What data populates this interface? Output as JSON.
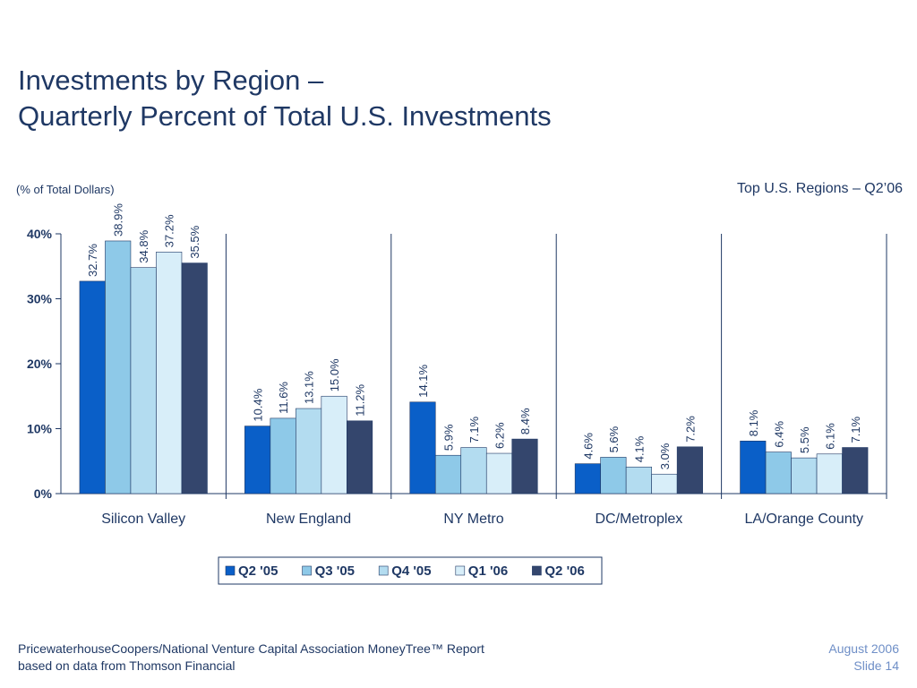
{
  "slide": {
    "title_line1": "Investments by Region –",
    "title_line2": "Quarterly Percent of Total U.S. Investments",
    "unit_note": "(% of Total Dollars)",
    "chart_caption": "Top U.S. Regions – Q2’06",
    "footer_line1": "PricewaterhouseCoopers/National Venture Capital Association MoneyTree™ Report",
    "footer_line2": "based on data from Thomson Financial",
    "date": "August 2006",
    "slide_number": "Slide 14"
  },
  "chart_data": {
    "type": "bar",
    "title": "Investments by Region – Quarterly Percent of Total U.S. Investments",
    "ylabel": "(% of Total Dollars)",
    "ylim": [
      0,
      40
    ],
    "yticks": [
      0,
      10,
      20,
      30,
      40
    ],
    "ytick_labels": [
      "0%",
      "10%",
      "20%",
      "30%",
      "40%"
    ],
    "categories": [
      "Silicon Valley",
      "New England",
      "NY Metro",
      "DC/Metroplex",
      "LA/Orange County"
    ],
    "series": [
      {
        "name": "Q2 '05",
        "color": "#0a5fc8",
        "values": [
          32.7,
          10.4,
          14.1,
          4.6,
          8.1
        ]
      },
      {
        "name": "Q3 '05",
        "color": "#8ec9e8",
        "values": [
          38.9,
          11.6,
          5.9,
          5.6,
          6.4
        ]
      },
      {
        "name": "Q4 '05",
        "color": "#b3dcf0",
        "values": [
          34.8,
          13.1,
          7.1,
          4.1,
          5.5
        ]
      },
      {
        "name": "Q1 '06",
        "color": "#d8eef9",
        "values": [
          37.2,
          15.0,
          6.2,
          3.0,
          6.1
        ]
      },
      {
        "name": "Q2 '06",
        "color": "#34466d",
        "values": [
          35.5,
          11.2,
          8.4,
          7.2,
          7.1
        ]
      }
    ],
    "legend_position": "bottom",
    "grid": false
  }
}
